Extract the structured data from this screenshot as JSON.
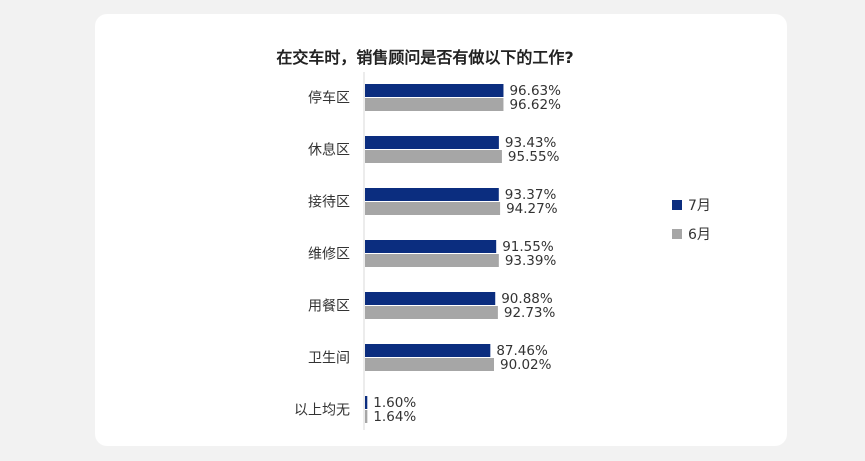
{
  "chart_data": {
    "type": "bar",
    "orientation": "horizontal",
    "title": "在交车时，销售顾问是否有做以下的工作?",
    "categories": [
      "停车区",
      "休息区",
      "接待区",
      "维修区",
      "用餐区",
      "卫生间",
      "以上均无"
    ],
    "series": [
      {
        "name": "7月",
        "color": "#0b2d7f",
        "values": [
          96.63,
          93.43,
          93.37,
          91.55,
          90.88,
          87.46,
          1.6
        ],
        "labels": [
          "96.63%",
          "93.43%",
          "93.37%",
          "91.55%",
          "90.88%",
          "87.46%",
          "1.60%"
        ]
      },
      {
        "name": "6月",
        "color": "#a6a6a6",
        "values": [
          96.62,
          95.55,
          94.27,
          93.39,
          92.73,
          90.02,
          1.64
        ],
        "labels": [
          "96.62%",
          "95.55%",
          "94.27%",
          "93.39%",
          "92.73%",
          "90.02%",
          "1.64%"
        ]
      }
    ],
    "legend_position": "right",
    "grid": false
  }
}
